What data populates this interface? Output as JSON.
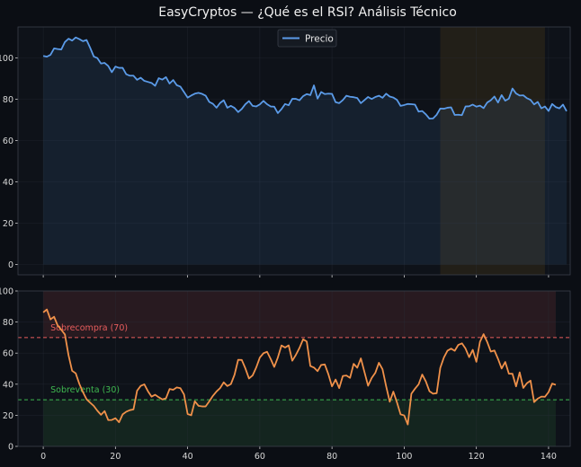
{
  "title": "EasyCryptos — ¿Qué es el RSI? Análisis Técnico",
  "colors": {
    "background": "#0b0e14",
    "panel": "#0e1219",
    "grid": "#2a2f3a",
    "price_line": "#5b9be8",
    "rsi_line": "#f0914a",
    "overbought": "#e85d5d",
    "oversold": "#3fb950",
    "highlight": "#2a2418"
  },
  "chart_data": [
    {
      "type": "line",
      "panel": "price",
      "title": "",
      "xlabel": "",
      "ylabel": "",
      "xlim": [
        -7,
        146
      ],
      "ylim": [
        -5,
        115
      ],
      "yticks": [
        0,
        20,
        40,
        60,
        80,
        100
      ],
      "ytick_labels": [
        "0",
        "20",
        "40",
        "60",
        "80",
        "100"
      ],
      "legend": "top-center",
      "grid": true,
      "shaded_x_range": [
        110,
        139
      ],
      "series": [
        {
          "name": "Precio",
          "x_start": 0,
          "values": [
            101,
            100.6,
            101.5,
            104.6,
            104.3,
            104.1,
            107.7,
            109.3,
            108.4,
            109.9,
            109.1,
            108.1,
            108.7,
            104.9,
            100.7,
            99.9,
            97.3,
            97.6,
            96.1,
            93.1,
            95.8,
            95.2,
            95.2,
            92.1,
            91.4,
            91.4,
            89.4,
            90.4,
            88.9,
            88.4,
            87.9,
            86.5,
            90.2,
            89.5,
            90.7,
            87.6,
            89.3,
            86.8,
            86.1,
            83.5,
            80.8,
            81.8,
            82.7,
            83.1,
            82.6,
            81.7,
            78.7,
            77.8,
            75.9,
            78.2,
            79.5,
            75.9,
            76.8,
            75.8,
            73.8,
            75.3,
            77.6,
            79.1,
            76.8,
            76.5,
            77.5,
            79.2,
            77.6,
            76.5,
            76.4,
            73.3,
            75.2,
            77.7,
            77.1,
            80.2,
            80.2,
            79.5,
            81.5,
            82.5,
            82,
            86.7,
            80.3,
            83.5,
            82.5,
            82.7,
            82.6,
            78.6,
            78.1,
            79.6,
            81.7,
            81.2,
            81,
            80.6,
            78.1,
            79.6,
            81.1,
            80.1,
            81.1,
            81.7,
            80.7,
            82.7,
            81.3,
            80.8,
            79.7,
            76.8,
            77.2,
            77.7,
            77.6,
            77.4,
            74,
            74.3,
            72.7,
            70.6,
            70.7,
            72.5,
            75.5,
            75.4,
            75.9,
            76.1,
            72.4,
            72.5,
            72.3,
            76.5,
            76.6,
            77.4,
            76.4,
            76.9,
            75.7,
            78.4,
            79.5,
            81.3,
            78.4,
            82,
            79.3,
            80.3,
            85.2,
            82.8,
            81.8,
            81.9,
            80.5,
            79.7,
            77.5,
            78.7,
            75.6,
            76.5,
            74.3,
            77.7,
            76.2,
            75.6,
            77.4,
            74.2
          ]
        }
      ]
    },
    {
      "type": "line",
      "panel": "rsi",
      "title": "",
      "xlabel": "",
      "ylabel": "",
      "xlim": [
        -7,
        146
      ],
      "ylim": [
        0,
        100
      ],
      "yticks": [
        0,
        20,
        40,
        60,
        80,
        100
      ],
      "ytick_labels": [
        "0",
        "20",
        "40",
        "60",
        "80",
        "100"
      ],
      "xticks": [
        0,
        20,
        40,
        60,
        80,
        100,
        120,
        140
      ],
      "xtick_labels": [
        "0",
        "20",
        "40",
        "60",
        "80",
        "100",
        "120",
        "140"
      ],
      "grid": true,
      "bands": [
        {
          "from": 70,
          "to": 100,
          "color": "#e85d5d"
        },
        {
          "from": 0,
          "to": 30,
          "color": "#3fb950"
        }
      ],
      "reference_lines": [
        {
          "y": 70,
          "label": "Sobrecompra (70)",
          "color": "#e85d5d"
        },
        {
          "y": 30,
          "label": "Sobreventa (30)",
          "color": "#3fb950"
        }
      ],
      "series": [
        {
          "name": "",
          "x_start": 0,
          "values": [
            86.2,
            88.1,
            81.7,
            83.4,
            77.8,
            75,
            72,
            58.7,
            48.6,
            47,
            40.2,
            34.9,
            30.3,
            28.1,
            26,
            22.9,
            20.3,
            22.7,
            16.9,
            17,
            18.1,
            15.5,
            20.6,
            22.3,
            23.3,
            23.8,
            35.8,
            38.9,
            39.9,
            35.5,
            32,
            33.2,
            31.6,
            30.2,
            30.9,
            36.9,
            36.4,
            37.9,
            37.4,
            33.4,
            20.8,
            20,
            29,
            26.1,
            25.7,
            25.7,
            29,
            32.5,
            35.3,
            37.5,
            41.2,
            38.8,
            40.1,
            46.1,
            55.7,
            55.6,
            50.2,
            43.7,
            45.6,
            50.7,
            57.1,
            59.9,
            60.9,
            56.3,
            51.1,
            57.2,
            64.9,
            63.6,
            65,
            55.1,
            58.9,
            63.4,
            68.9,
            67.5,
            51.7,
            50.7,
            48.4,
            52.4,
            52.7,
            46.4,
            38.6,
            43,
            37.5,
            45.3,
            45.6,
            44.1,
            53.1,
            50.6,
            56.6,
            47.8,
            39,
            44,
            47.3,
            53.8,
            49.6,
            38.7,
            28.7,
            35.2,
            28.3,
            20.6,
            19.9,
            14.1,
            33.9,
            37.1,
            39.9,
            46.2,
            41.8,
            35.5,
            33.9,
            34.2,
            50.5,
            57.2,
            61.6,
            62.9,
            61.5,
            65.3,
            66.3,
            62.9,
            57.4,
            62.1,
            54.4,
            67.3,
            72.2,
            67.2,
            61,
            61.7,
            56.3,
            50.1,
            54.3,
            46.8,
            46.7,
            38.6,
            47.6,
            37.6,
            40.6,
            42.3,
            28.5,
            30.7,
            32,
            31.9,
            34.9,
            40.4,
            39.6
          ]
        }
      ]
    }
  ]
}
